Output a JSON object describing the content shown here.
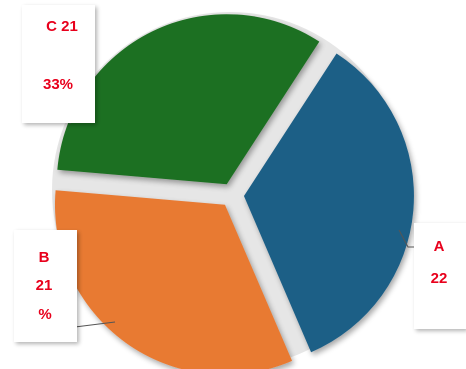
{
  "chart_data": {
    "type": "pie",
    "title": "",
    "exploded": true,
    "slices": [
      {
        "category": "A",
        "value": 22,
        "color": "#1f5f86",
        "label_lines": [
          "A",
          "22"
        ]
      },
      {
        "category": "B",
        "value": 21,
        "color": "#e87a33",
        "label_lines": [
          "B",
          "21",
          "%"
        ]
      },
      {
        "category": "C",
        "value": 21,
        "color": "#1f6f22",
        "label_lines": [
          "C 21",
          "33%"
        ]
      }
    ],
    "label_color": "#e8001c",
    "legend": "none"
  }
}
